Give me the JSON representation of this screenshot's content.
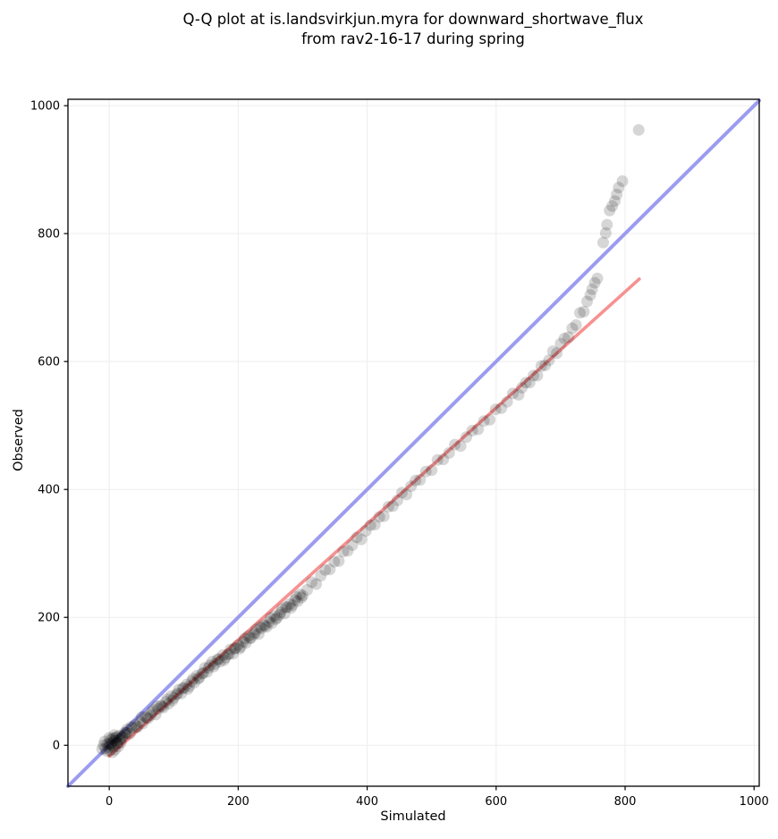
{
  "chart_data": {
    "type": "scatter",
    "title": "Q-Q plot at is.landsvirkjun.myra for downward_shortwave_flux from rav2-16-17 during spring",
    "title_line1": "Q-Q plot at is.landsvirkjun.myra for downward_shortwave_flux",
    "title_line2": "from rav2-16-17 during spring",
    "xlabel": "Simulated",
    "ylabel": "Observed",
    "xlim": [
      -64,
      1008
    ],
    "ylim": [
      -64,
      1010
    ],
    "xticks": [
      0,
      200,
      400,
      600,
      800,
      1000
    ],
    "yticks": [
      0,
      200,
      400,
      600,
      800,
      1000
    ],
    "grid": true,
    "grid_color": "#ededed",
    "spine_color": "#000000",
    "identity_line": {
      "name": "one-to-one line",
      "from": [
        -64,
        -64
      ],
      "to": [
        1008,
        1008
      ],
      "color": "#9b9cf0",
      "width": 4
    },
    "regression_line": {
      "name": "fit line",
      "from": [
        0,
        -17
      ],
      "to": [
        822,
        729
      ],
      "color": "#f79191",
      "width": 3.6
    },
    "points_style": {
      "color": "#000000",
      "opacity": 0.16,
      "radius": 6.5
    },
    "points": [
      [
        -6,
        -5
      ],
      [
        -3,
        2
      ],
      [
        1,
        -8
      ],
      [
        4,
        4
      ],
      [
        7,
        -2
      ],
      [
        10,
        7
      ],
      [
        -9,
        0
      ],
      [
        13,
        3
      ],
      [
        2,
        9
      ],
      [
        -1,
        -3
      ],
      [
        6,
        11
      ],
      [
        16,
        9
      ],
      [
        -4,
        -9
      ],
      [
        9,
        -7
      ],
      [
        20,
        14
      ],
      [
        24,
        20
      ],
      [
        14,
        -2
      ],
      [
        -7,
        6
      ],
      [
        0,
        12
      ],
      [
        5,
        -11
      ],
      [
        18,
        4
      ],
      [
        11,
        13
      ],
      [
        -11,
        -6
      ],
      [
        8,
        16
      ],
      [
        27,
        19
      ],
      [
        0,
        3
      ],
      [
        4,
        0
      ],
      [
        8,
        8
      ],
      [
        12,
        4
      ],
      [
        16,
        15
      ],
      [
        20,
        12
      ],
      [
        24,
        17
      ],
      [
        28,
        25
      ],
      [
        32,
        18
      ],
      [
        36,
        27
      ],
      [
        40,
        32
      ],
      [
        44,
        29
      ],
      [
        48,
        37
      ],
      [
        52,
        34
      ],
      [
        56,
        45
      ],
      [
        60,
        42
      ],
      [
        64,
        47
      ],
      [
        68,
        55
      ],
      [
        72,
        48
      ],
      [
        76,
        57
      ],
      [
        80,
        62
      ],
      [
        84,
        59
      ],
      [
        88,
        68
      ],
      [
        92,
        65
      ],
      [
        96,
        77
      ],
      [
        100,
        74
      ],
      [
        104,
        79
      ],
      [
        108,
        87
      ],
      [
        112,
        81
      ],
      [
        116,
        90
      ],
      [
        120,
        95
      ],
      [
        124,
        92
      ],
      [
        128,
        100
      ],
      [
        132,
        98
      ],
      [
        136,
        109
      ],
      [
        140,
        106
      ],
      [
        144,
        112
      ],
      [
        148,
        121
      ],
      [
        152,
        115
      ],
      [
        156,
        125
      ],
      [
        160,
        131
      ],
      [
        164,
        127
      ],
      [
        168,
        134
      ],
      [
        172,
        131
      ],
      [
        176,
        141
      ],
      [
        180,
        137
      ],
      [
        184,
        142
      ],
      [
        188,
        150
      ],
      [
        192,
        143
      ],
      [
        196,
        152
      ],
      [
        200,
        157
      ],
      [
        204,
        154
      ],
      [
        208,
        162
      ],
      [
        212,
        160
      ],
      [
        216,
        171
      ],
      [
        220,
        168
      ],
      [
        224,
        173
      ],
      [
        228,
        181
      ],
      [
        232,
        174
      ],
      [
        236,
        183
      ],
      [
        240,
        188
      ],
      [
        244,
        185
      ],
      [
        248,
        193
      ],
      [
        252,
        191
      ],
      [
        256,
        202
      ],
      [
        260,
        199
      ],
      [
        264,
        204
      ],
      [
        268,
        213
      ],
      [
        272,
        206
      ],
      [
        276,
        216
      ],
      [
        280,
        221
      ],
      [
        284,
        219
      ],
      [
        288,
        227
      ],
      [
        292,
        225
      ],
      [
        296,
        236
      ],
      [
        2,
        1
      ],
      [
        10,
        12
      ],
      [
        18,
        10
      ],
      [
        26,
        20
      ],
      [
        34,
        29
      ],
      [
        42,
        28
      ],
      [
        50,
        44
      ],
      [
        58,
        43
      ],
      [
        66,
        52
      ],
      [
        74,
        61
      ],
      [
        82,
        61
      ],
      [
        90,
        72
      ],
      [
        98,
        70
      ],
      [
        106,
        81
      ],
      [
        114,
        89
      ],
      [
        122,
        88
      ],
      [
        130,
        104
      ],
      [
        138,
        104
      ],
      [
        146,
        113
      ],
      [
        154,
        121
      ],
      [
        162,
        123
      ],
      [
        170,
        135
      ],
      [
        178,
        133
      ],
      [
        186,
        143
      ],
      [
        194,
        151
      ],
      [
        202,
        151
      ],
      [
        210,
        167
      ],
      [
        218,
        167
      ],
      [
        226,
        176
      ],
      [
        234,
        185
      ],
      [
        242,
        187
      ],
      [
        250,
        199
      ],
      [
        258,
        197
      ],
      [
        266,
        208
      ],
      [
        274,
        216
      ],
      [
        282,
        215
      ],
      [
        290,
        232
      ],
      [
        298,
        231
      ],
      [
        300,
        234
      ],
      [
        307,
        243
      ],
      [
        314,
        255
      ],
      [
        321,
        252
      ],
      [
        328,
        265
      ],
      [
        335,
        274
      ],
      [
        342,
        275
      ],
      [
        349,
        287
      ],
      [
        356,
        288
      ],
      [
        363,
        303
      ],
      [
        370,
        304
      ],
      [
        377,
        313
      ],
      [
        384,
        325
      ],
      [
        391,
        322
      ],
      [
        398,
        335
      ],
      [
        405,
        344
      ],
      [
        412,
        345
      ],
      [
        419,
        357
      ],
      [
        426,
        358
      ],
      [
        433,
        373
      ],
      [
        440,
        374
      ],
      [
        447,
        383
      ],
      [
        454,
        395
      ],
      [
        461,
        392
      ],
      [
        468,
        405
      ],
      [
        475,
        414
      ],
      [
        482,
        415
      ],
      [
        491,
        428
      ],
      [
        500,
        430
      ],
      [
        509,
        446
      ],
      [
        518,
        447
      ],
      [
        527,
        457
      ],
      [
        536,
        470
      ],
      [
        545,
        468
      ],
      [
        554,
        482
      ],
      [
        563,
        492
      ],
      [
        572,
        494
      ],
      [
        581,
        507
      ],
      [
        590,
        509
      ],
      [
        599,
        525
      ],
      [
        608,
        527
      ],
      [
        617,
        537
      ],
      [
        626,
        550
      ],
      [
        635,
        548
      ],
      [
        640,
        559
      ],
      [
        646,
        567
      ],
      [
        652,
        567
      ],
      [
        658,
        578
      ],
      [
        664,
        578
      ],
      [
        670,
        593
      ],
      [
        676,
        594
      ],
      [
        682,
        602
      ],
      [
        688,
        616
      ],
      [
        694,
        613
      ],
      [
        700,
        628
      ],
      [
        706,
        636
      ],
      [
        712,
        638
      ],
      [
        718,
        652
      ],
      [
        724,
        657
      ],
      [
        730,
        676
      ],
      [
        736,
        678
      ],
      [
        741,
        694
      ],
      [
        746,
        704
      ],
      [
        749,
        713
      ],
      [
        753,
        723
      ],
      [
        757,
        730
      ],
      [
        766,
        786
      ],
      [
        770,
        801
      ],
      [
        772,
        814
      ],
      [
        776,
        836
      ],
      [
        780,
        843
      ],
      [
        784,
        851
      ],
      [
        787,
        861
      ],
      [
        790,
        872
      ],
      [
        796,
        882
      ],
      [
        821,
        962
      ]
    ]
  }
}
